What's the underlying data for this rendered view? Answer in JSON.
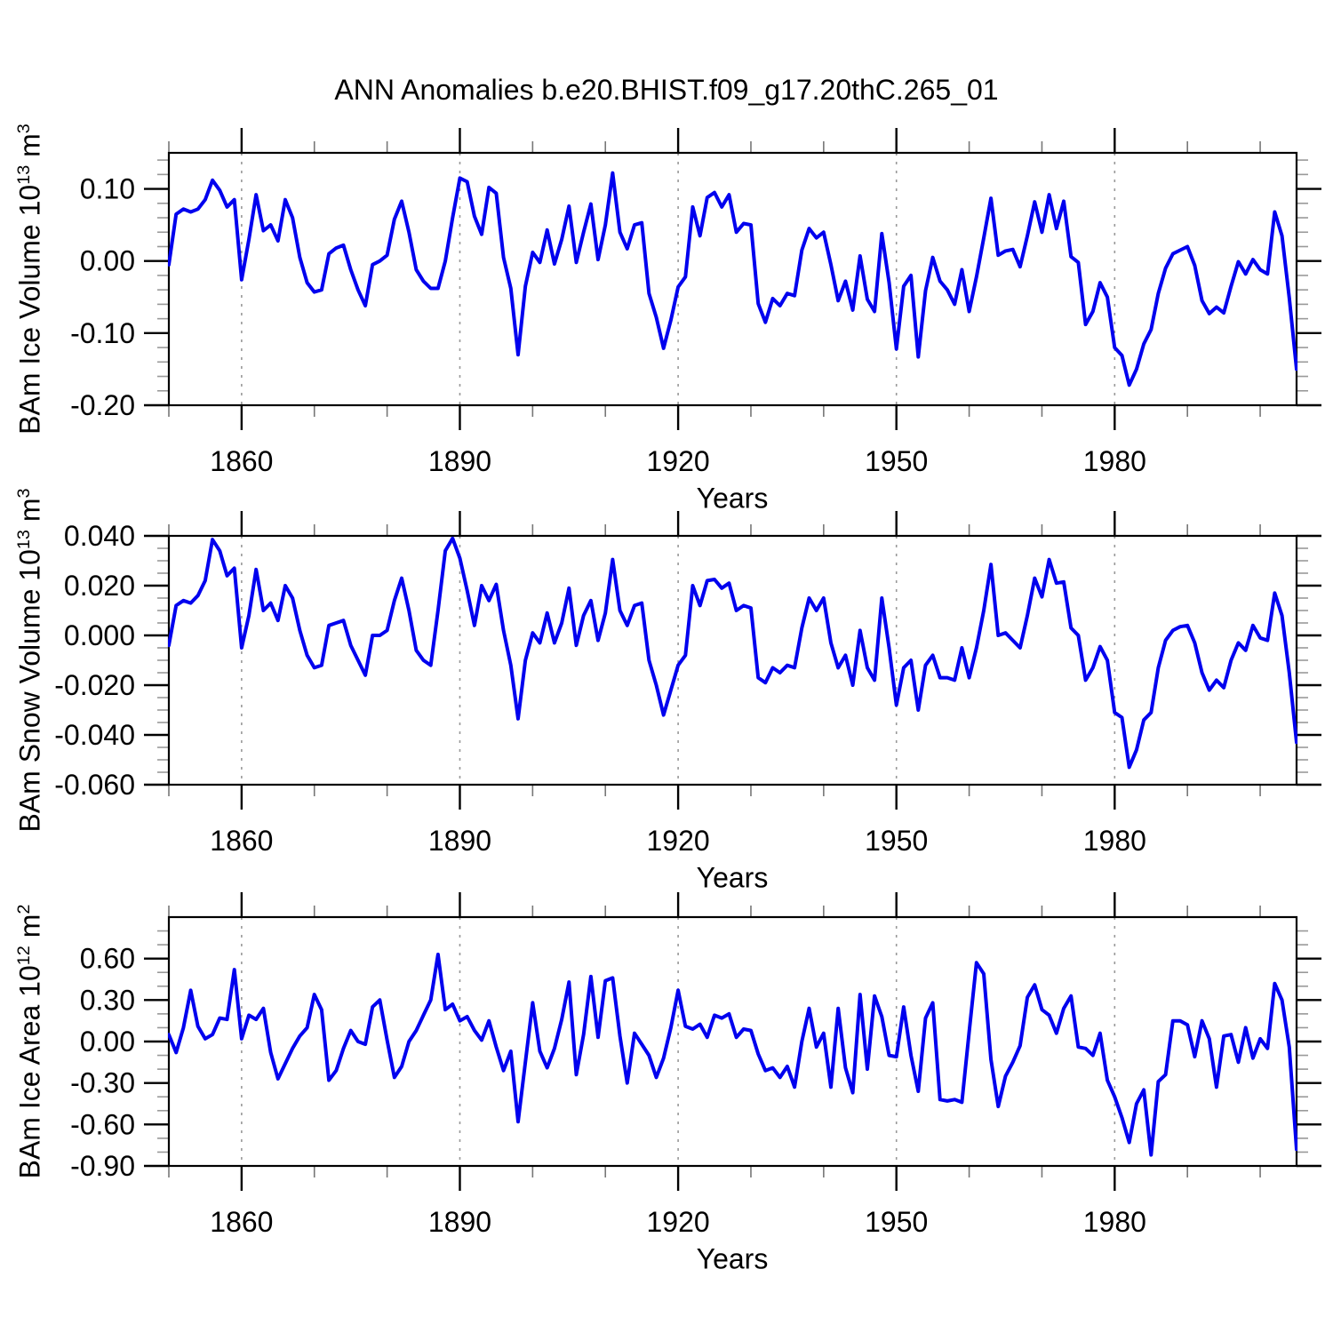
{
  "title": "ANN Anomalies b.e20.BHIST.f09_g17.20thC.265_01",
  "line_color": "#0000ee",
  "gridline_color": "#999999",
  "x_axis": {
    "label": "Years",
    "min": 1850,
    "max": 2005,
    "major_ticks": [
      1860,
      1890,
      1920,
      1950,
      1980
    ],
    "major_tick_labels": [
      "1860",
      "1890",
      "1920",
      "1950",
      "1980"
    ],
    "minor_step": 10,
    "gridlines": "dashed-vertical-at-major-ticks"
  },
  "panels": [
    {
      "id": "ice-volume",
      "y_title": {
        "prefix": "BAm Ice Volume 10",
        "exp": "13",
        "unit": "m",
        "unit_exp": "3"
      },
      "y_min": -0.2,
      "y_max": 0.15,
      "y_major_ticks": [
        0.1,
        0.0,
        -0.1,
        -0.2
      ],
      "y_major_tick_labels": [
        "0.10",
        "0.00",
        "-0.10",
        "-0.20"
      ],
      "y_minor_step": 0.02
    },
    {
      "id": "snow-volume",
      "y_title": {
        "prefix": "BAm Snow Volume 10",
        "exp": "13",
        "unit": "m",
        "unit_exp": "3"
      },
      "y_min": -0.06,
      "y_max": 0.04,
      "y_major_ticks": [
        0.04,
        0.02,
        0.0,
        -0.02,
        -0.04,
        -0.06
      ],
      "y_major_tick_labels": [
        "0.040",
        "0.020",
        "0.000",
        "-0.020",
        "-0.040",
        "-0.060"
      ],
      "y_minor_step": 0.005
    },
    {
      "id": "ice-area",
      "y_title": {
        "prefix": "BAm Ice Area 10",
        "exp": "12",
        "unit": "m",
        "unit_exp": "2"
      },
      "y_min": -0.9,
      "y_max": 0.9,
      "y_major_ticks": [
        0.6,
        0.3,
        0.0,
        -0.3,
        -0.6,
        -0.9
      ],
      "y_major_tick_labels": [
        "0.60",
        "0.30",
        "0.00",
        "-0.30",
        "-0.60",
        "-0.90"
      ],
      "y_minor_step": 0.1
    }
  ],
  "chart_data": {
    "type": "line",
    "title": "ANN Anomalies b.e20.BHIST.f09_g17.20thC.265_01",
    "xlabel": "Years",
    "x": {
      "start": 1850,
      "end": 2005,
      "step": 1
    },
    "legend": "none",
    "series": [
      {
        "name": "BAm Ice Volume",
        "units": "10^13 m^3",
        "ylim": [
          -0.2,
          0.15
        ],
        "values": [
          -0.005,
          0.065,
          0.072,
          0.068,
          0.072,
          0.085,
          0.112,
          0.098,
          0.075,
          0.085,
          -0.026,
          0.03,
          0.092,
          0.042,
          0.05,
          0.028,
          0.085,
          0.06,
          0.005,
          -0.03,
          -0.043,
          -0.04,
          0.01,
          0.018,
          0.022,
          -0.012,
          -0.04,
          -0.062,
          -0.005,
          0.0,
          0.008,
          0.058,
          0.083,
          0.04,
          -0.012,
          -0.028,
          -0.038,
          -0.038,
          0.0,
          0.06,
          0.115,
          0.11,
          0.062,
          0.037,
          0.102,
          0.094,
          0.005,
          -0.038,
          -0.13,
          -0.035,
          0.012,
          -0.002,
          0.043,
          -0.004,
          0.03,
          0.076,
          -0.002,
          0.04,
          0.079,
          0.002,
          0.05,
          0.122,
          0.04,
          0.017,
          0.05,
          0.053,
          -0.045,
          -0.078,
          -0.121,
          -0.082,
          -0.036,
          -0.022,
          0.075,
          0.035,
          0.088,
          0.095,
          0.075,
          0.092,
          0.04,
          0.052,
          0.05,
          -0.059,
          -0.085,
          -0.052,
          -0.062,
          -0.045,
          -0.048,
          0.015,
          0.045,
          0.032,
          0.04,
          -0.005,
          -0.055,
          -0.028,
          -0.068,
          0.007,
          -0.053,
          -0.07,
          0.038,
          -0.03,
          -0.122,
          -0.035,
          -0.02,
          -0.133,
          -0.041,
          0.005,
          -0.028,
          -0.04,
          -0.06,
          -0.012,
          -0.07,
          -0.022,
          0.032,
          0.087,
          0.008,
          0.014,
          0.016,
          -0.008,
          0.035,
          0.082,
          0.04,
          0.092,
          0.045,
          0.083,
          0.006,
          -0.002,
          -0.088,
          -0.07,
          -0.03,
          -0.05,
          -0.12,
          -0.131,
          -0.172,
          -0.15,
          -0.115,
          -0.095,
          -0.045,
          -0.01,
          0.01,
          0.015,
          0.02,
          -0.006,
          -0.055,
          -0.073,
          -0.064,
          -0.072,
          -0.035,
          -0.001,
          -0.018,
          0.002,
          -0.012,
          -0.018,
          0.068,
          0.035,
          -0.051,
          -0.15
        ]
      },
      {
        "name": "BAm Snow Volume",
        "units": "10^13 m^3",
        "ylim": [
          -0.06,
          0.04
        ],
        "values": [
          -0.004,
          0.012,
          0.014,
          0.013,
          0.016,
          0.022,
          0.0385,
          0.034,
          0.024,
          0.027,
          -0.005,
          0.008,
          0.0265,
          0.01,
          0.013,
          0.006,
          0.02,
          0.015,
          0.002,
          -0.008,
          -0.013,
          -0.012,
          0.004,
          0.005,
          0.006,
          -0.004,
          -0.01,
          -0.016,
          0.0,
          0.0,
          0.002,
          0.014,
          0.023,
          0.01,
          -0.006,
          -0.01,
          -0.012,
          0.01,
          0.034,
          0.039,
          0.031,
          0.018,
          0.004,
          0.02,
          0.014,
          0.0205,
          0.002,
          -0.012,
          -0.0335,
          -0.01,
          0.001,
          -0.003,
          0.009,
          -0.003,
          0.005,
          0.019,
          -0.004,
          0.008,
          0.014,
          -0.002,
          0.009,
          0.0305,
          0.01,
          0.004,
          0.012,
          0.013,
          -0.01,
          -0.02,
          -0.032,
          -0.022,
          -0.012,
          -0.008,
          0.02,
          0.012,
          0.022,
          0.0225,
          0.019,
          0.021,
          0.01,
          0.012,
          0.011,
          -0.017,
          -0.019,
          -0.013,
          -0.015,
          -0.012,
          -0.013,
          0.003,
          0.015,
          0.01,
          0.015,
          -0.003,
          -0.013,
          -0.008,
          -0.02,
          0.002,
          -0.013,
          -0.018,
          0.015,
          -0.005,
          -0.028,
          -0.013,
          -0.01,
          -0.03,
          -0.012,
          -0.008,
          -0.017,
          -0.017,
          -0.018,
          -0.005,
          -0.017,
          -0.005,
          0.01,
          0.0285,
          0.0,
          0.001,
          -0.002,
          -0.005,
          0.008,
          0.023,
          0.0155,
          0.0305,
          0.021,
          0.0215,
          0.003,
          0.0,
          -0.018,
          -0.013,
          -0.0045,
          -0.01,
          -0.031,
          -0.033,
          -0.053,
          -0.046,
          -0.034,
          -0.031,
          -0.013,
          -0.002,
          0.002,
          0.0035,
          0.004,
          -0.003,
          -0.015,
          -0.022,
          -0.018,
          -0.021,
          -0.01,
          -0.003,
          -0.006,
          0.004,
          -0.001,
          -0.002,
          0.017,
          0.008,
          -0.015,
          -0.043
        ]
      },
      {
        "name": "BAm Ice Area",
        "units": "10^12 m^2",
        "ylim": [
          -0.9,
          0.9
        ],
        "values": [
          0.05,
          -0.08,
          0.1,
          0.37,
          0.11,
          0.02,
          0.05,
          0.17,
          0.16,
          0.52,
          0.02,
          0.19,
          0.16,
          0.24,
          -0.08,
          -0.27,
          -0.16,
          -0.05,
          0.04,
          0.1,
          0.34,
          0.23,
          -0.28,
          -0.21,
          -0.05,
          0.08,
          0.0,
          -0.02,
          0.25,
          0.3,
          0.01,
          -0.26,
          -0.18,
          0.0,
          0.08,
          0.19,
          0.3,
          0.63,
          0.23,
          0.27,
          0.15,
          0.18,
          0.08,
          0.01,
          0.15,
          -0.04,
          -0.21,
          -0.07,
          -0.58,
          -0.15,
          0.28,
          -0.07,
          -0.19,
          -0.05,
          0.16,
          0.43,
          -0.24,
          0.05,
          0.47,
          0.03,
          0.44,
          0.46,
          0.04,
          -0.3,
          0.06,
          -0.02,
          -0.1,
          -0.26,
          -0.12,
          0.1,
          0.37,
          0.11,
          0.09,
          0.125,
          0.03,
          0.19,
          0.17,
          0.2,
          0.03,
          0.09,
          0.08,
          -0.09,
          -0.21,
          -0.19,
          -0.26,
          -0.18,
          -0.33,
          0.0,
          0.24,
          -0.04,
          0.06,
          -0.33,
          0.24,
          -0.19,
          -0.37,
          0.34,
          -0.2,
          0.33,
          0.18,
          -0.1,
          -0.11,
          0.25,
          -0.1,
          -0.36,
          0.17,
          0.28,
          -0.42,
          -0.43,
          -0.42,
          -0.44,
          0.07,
          0.57,
          0.49,
          -0.13,
          -0.47,
          -0.25,
          -0.15,
          -0.03,
          0.32,
          0.41,
          0.23,
          0.19,
          0.06,
          0.24,
          0.33,
          -0.04,
          -0.05,
          -0.1,
          0.06,
          -0.28,
          -0.4,
          -0.55,
          -0.73,
          -0.45,
          -0.35,
          -0.82,
          -0.29,
          -0.24,
          0.15,
          0.15,
          0.12,
          -0.11,
          0.15,
          0.02,
          -0.33,
          0.04,
          0.05,
          -0.15,
          0.1,
          -0.12,
          0.02,
          -0.05,
          0.42,
          0.3,
          -0.04,
          -0.78
        ]
      }
    ]
  }
}
